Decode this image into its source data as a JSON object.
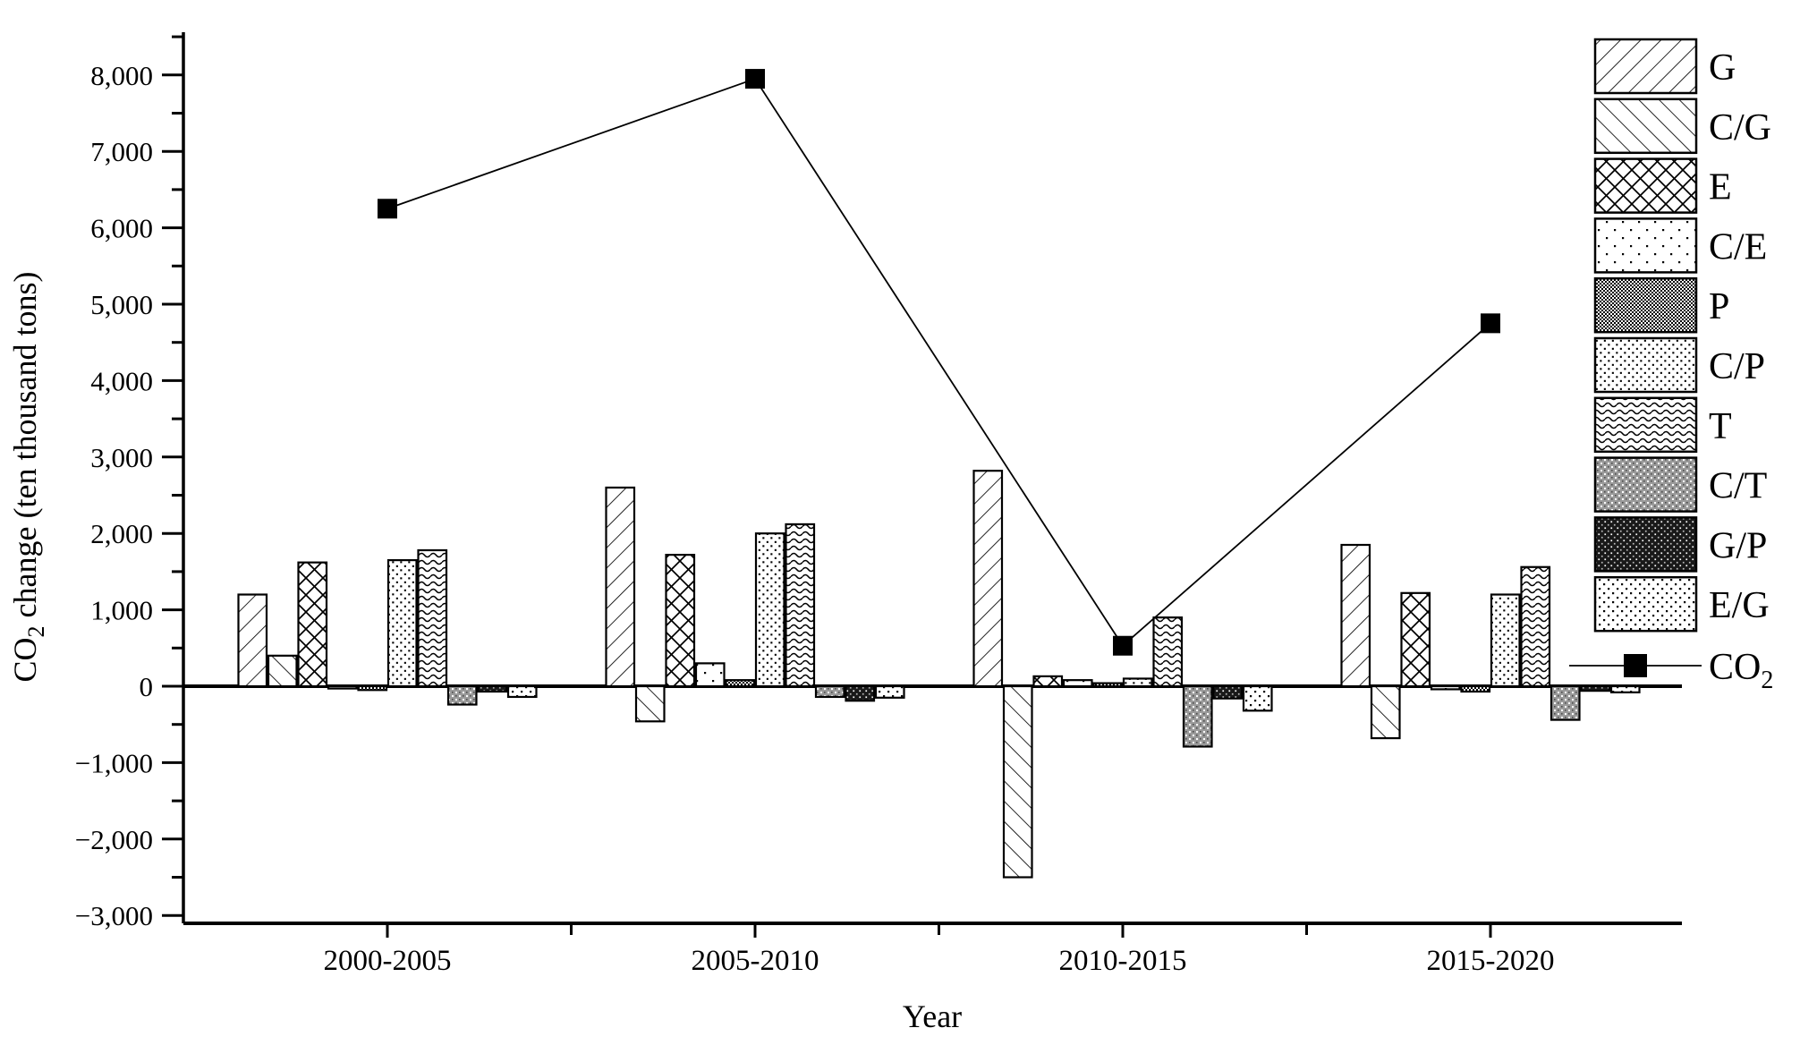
{
  "chart_data": {
    "type": "bar+line",
    "title": "",
    "xlabel": "Year",
    "ylabel_text": "CO2 change (ten thousand tons)",
    "ylabel_parts": [
      {
        "t": "CO"
      },
      {
        "t": "2",
        "sub": true
      },
      {
        "t": " change (ten thousand tons)"
      }
    ],
    "categories": [
      "2000-2005",
      "2005-2010",
      "2010-2015",
      "2015-2020"
    ],
    "bar_series": [
      {
        "name": "G",
        "pattern": "diagonal-up-hatch",
        "values": [
          1200,
          2600,
          2820,
          1850
        ]
      },
      {
        "name": "C/G",
        "pattern": "diagonal-down-hatch",
        "values": [
          400,
          -460,
          -2500,
          -680
        ]
      },
      {
        "name": "E",
        "pattern": "cross-hatch",
        "values": [
          1620,
          1720,
          130,
          1220
        ]
      },
      {
        "name": "C/E",
        "pattern": "sparse-dots",
        "values": [
          -30,
          300,
          80,
          -40
        ]
      },
      {
        "name": "P",
        "pattern": "fine-checker",
        "values": [
          -50,
          80,
          40,
          -70
        ]
      },
      {
        "name": "C/P",
        "pattern": "diamond-dots",
        "values": [
          1650,
          2000,
          100,
          1200
        ]
      },
      {
        "name": "T",
        "pattern": "waves",
        "values": [
          1780,
          2120,
          900,
          1560
        ]
      },
      {
        "name": "C/T",
        "pattern": "gray-speckle",
        "values": [
          -240,
          -140,
          -790,
          -440
        ]
      },
      {
        "name": "G/P",
        "pattern": "dark-speckle",
        "values": [
          -70,
          -190,
          -160,
          -60
        ]
      },
      {
        "name": "E/G",
        "pattern": "light-dots",
        "values": [
          -140,
          -150,
          -320,
          -80
        ]
      }
    ],
    "line_series": {
      "name": "CO2",
      "label_main": "CO",
      "label_sub": "2",
      "values": [
        6250,
        7950,
        530,
        4750
      ]
    },
    "y_axis": {
      "min": -3000,
      "max": 8000,
      "major_step": 1000,
      "minor_step": 500,
      "tick_values": [
        8000,
        7000,
        6000,
        5000,
        4000,
        3000,
        2000,
        1000,
        0,
        -1000,
        -2000,
        -3000
      ],
      "tick_labels": [
        "8,000",
        "7,000",
        "6,000",
        "5,000",
        "4,000",
        "3,000",
        "2,000",
        "1,000",
        "0",
        "−1,000",
        "−2,000",
        "−3,000"
      ]
    },
    "legend_position": "right",
    "grid": false,
    "colors": {
      "ink": "#000000",
      "background": "#ffffff",
      "gray_fill": "#9a9a9a",
      "dark_fill": "#191919"
    }
  }
}
